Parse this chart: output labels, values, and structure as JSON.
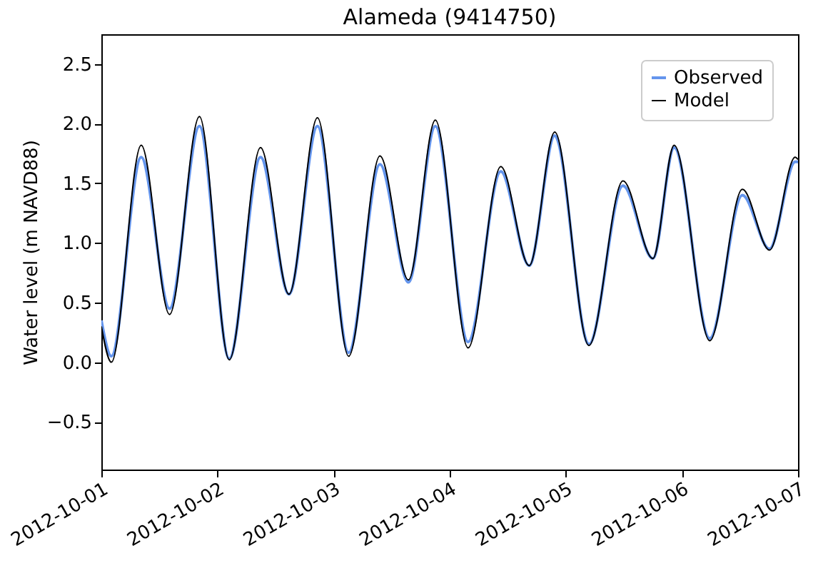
{
  "chart_data": {
    "type": "line",
    "title": "Alameda (9414750)",
    "ylabel": "Water level (m NAVD88)",
    "x": [
      "2012-10-01T00:00",
      "2012-10-01T02:04",
      "2012-10-01T08:14",
      "2012-10-01T14:06",
      "2012-10-01T20:16",
      "2012-10-02T02:26",
      "2012-10-02T08:54",
      "2012-10-02T14:47",
      "2012-10-02T20:40",
      "2012-10-03T03:07",
      "2012-10-03T09:35",
      "2012-10-03T15:28",
      "2012-10-03T21:02",
      "2012-10-04T03:48",
      "2012-10-04T10:34",
      "2012-10-04T16:26",
      "2012-10-04T21:43",
      "2012-10-05T04:46",
      "2012-10-05T11:49",
      "2012-10-05T18:00",
      "2012-10-05T22:24",
      "2012-10-06T05:45",
      "2012-10-06T12:30",
      "2012-10-06T18:06",
      "2012-10-06T23:25",
      "2012-10-07T00:00"
    ],
    "series": [
      {
        "name": "Observed",
        "color": "#6495ed",
        "values": [
          0.35,
          0.05,
          1.72,
          0.45,
          1.98,
          0.03,
          1.72,
          0.57,
          1.98,
          0.08,
          1.66,
          0.67,
          1.98,
          0.17,
          1.6,
          0.81,
          1.9,
          0.15,
          1.48,
          0.87,
          1.8,
          0.2,
          1.4,
          0.95,
          1.68,
          1.68
        ]
      },
      {
        "name": "Model",
        "color": "#000000",
        "values": [
          0.3,
          0.0,
          1.82,
          0.4,
          2.06,
          0.02,
          1.8,
          0.57,
          2.05,
          0.05,
          1.73,
          0.69,
          2.03,
          0.12,
          1.64,
          0.81,
          1.93,
          0.14,
          1.52,
          0.87,
          1.82,
          0.18,
          1.45,
          0.94,
          1.72,
          1.7
        ]
      }
    ],
    "xlim": [
      "2012-10-01",
      "2012-10-07"
    ],
    "xticks": [
      "2012-10-01",
      "2012-10-02",
      "2012-10-03",
      "2012-10-04",
      "2012-10-05",
      "2012-10-06",
      "2012-10-07"
    ],
    "ylim": [
      -0.9,
      2.75
    ],
    "yticks": [
      -0.5,
      {
        "value": 0,
        "label": "0.0"
      },
      0.5,
      {
        "value": 1,
        "label": "1.0"
      },
      1.5,
      {
        "value": 2,
        "label": "2.0"
      },
      2.5
    ],
    "grid": false,
    "legend": "top right"
  }
}
